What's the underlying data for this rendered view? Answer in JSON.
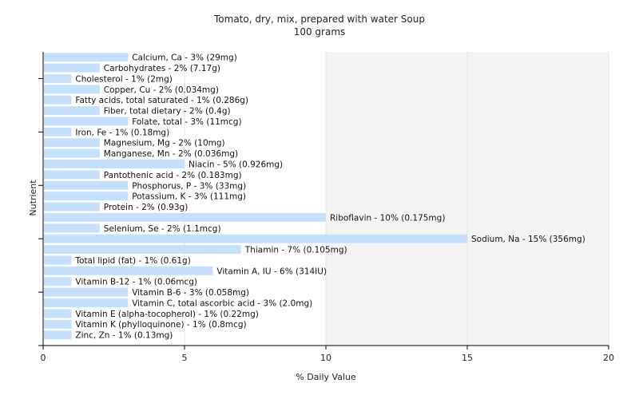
{
  "chart_data": {
    "type": "bar",
    "orientation": "horizontal",
    "title": "Tomato, dry, mix, prepared with water Soup",
    "subtitle": "100 grams",
    "xlabel": "% Daily Value",
    "ylabel": "Nutrient",
    "xlim": [
      0,
      20
    ],
    "xticks": [
      0,
      5,
      10,
      15,
      20
    ],
    "grid": "vertical",
    "colors": {
      "bar": "#c6e0fb",
      "grid": "#e6e6e6",
      "plot_bg_right": "#f4f4f4",
      "axis": "#000000"
    },
    "categories": [
      "Calcium, Ca",
      "Carbohydrates",
      "Cholesterol",
      "Copper, Cu",
      "Fatty acids, total saturated",
      "Fiber, total dietary",
      "Folate, total",
      "Iron, Fe",
      "Magnesium, Mg",
      "Manganese, Mn",
      "Niacin",
      "Pantothenic acid",
      "Phosphorus, P",
      "Potassium, K",
      "Protein",
      "Riboflavin",
      "Selenium, Se",
      "Sodium, Na",
      "Thiamin",
      "Total lipid (fat)",
      "Vitamin A, IU",
      "Vitamin B-12",
      "Vitamin B-6",
      "Vitamin C, total ascorbic acid",
      "Vitamin E (alpha-tocopherol)",
      "Vitamin K (phylloquinone)",
      "Zinc, Zn"
    ],
    "values": [
      3,
      2,
      1,
      2,
      1,
      2,
      3,
      1,
      2,
      2,
      5,
      2,
      3,
      3,
      2,
      10,
      2,
      15,
      7,
      1,
      6,
      1,
      3,
      3,
      1,
      1,
      1
    ],
    "labels": [
      "Calcium, Ca - 3% (29mg)",
      "Carbohydrates - 2% (7.17g)",
      "Cholesterol - 1% (2mg)",
      "Copper, Cu - 2% (0.034mg)",
      "Fatty acids, total saturated - 1% (0.286g)",
      "Fiber, total dietary - 2% (0.4g)",
      "Folate, total - 3% (11mcg)",
      "Iron, Fe - 1% (0.18mg)",
      "Magnesium, Mg - 2% (10mg)",
      "Manganese, Mn - 2% (0.036mg)",
      "Niacin - 5% (0.926mg)",
      "Pantothenic acid - 2% (0.183mg)",
      "Phosphorus, P - 3% (33mg)",
      "Potassium, K - 3% (111mg)",
      "Protein - 2% (0.93g)",
      "Riboflavin - 10% (0.175mg)",
      "Selenium, Se - 2% (1.1mcg)",
      "Sodium, Na - 15% (356mg)",
      "Thiamin - 7% (0.105mg)",
      "Total lipid (fat) - 1% (0.61g)",
      "Vitamin A, IU - 6% (314IU)",
      "Vitamin B-12 - 1% (0.06mcg)",
      "Vitamin B-6 - 3% (0.058mg)",
      "Vitamin C, total ascorbic acid - 3% (2.0mg)",
      "Vitamin E (alpha-tocopherol) - 1% (0.22mg)",
      "Vitamin K (phylloquinone) - 1% (0.8mcg)",
      "Zinc, Zn - 1% (0.13mg)"
    ]
  }
}
